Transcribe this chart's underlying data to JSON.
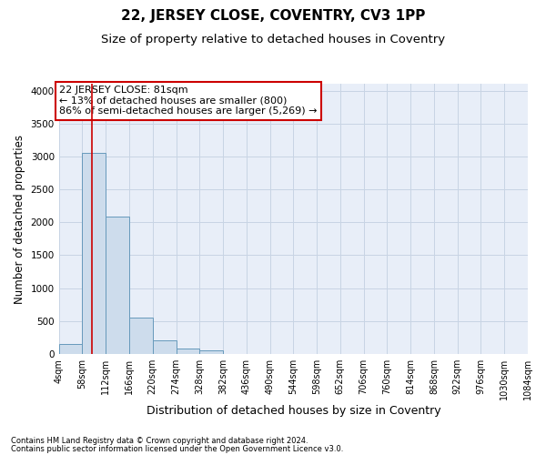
{
  "title": "22, JERSEY CLOSE, COVENTRY, CV3 1PP",
  "subtitle": "Size of property relative to detached houses in Coventry",
  "xlabel": "Distribution of detached houses by size in Coventry",
  "ylabel": "Number of detached properties",
  "footer_line1": "Contains HM Land Registry data © Crown copyright and database right 2024.",
  "footer_line2": "Contains public sector information licensed under the Open Government Licence v3.0.",
  "bin_labels": [
    "4sqm",
    "58sqm",
    "112sqm",
    "166sqm",
    "220sqm",
    "274sqm",
    "328sqm",
    "382sqm",
    "436sqm",
    "490sqm",
    "544sqm",
    "598sqm",
    "652sqm",
    "706sqm",
    "760sqm",
    "814sqm",
    "868sqm",
    "922sqm",
    "976sqm",
    "1030sqm",
    "1084sqm"
  ],
  "bin_edges": [
    4,
    58,
    112,
    166,
    220,
    274,
    328,
    382,
    436,
    490,
    544,
    598,
    652,
    706,
    760,
    814,
    868,
    922,
    976,
    1030,
    1084
  ],
  "bar_heights": [
    150,
    3060,
    2080,
    555,
    210,
    85,
    55,
    0,
    0,
    0,
    0,
    0,
    0,
    0,
    0,
    0,
    0,
    0,
    0,
    0
  ],
  "bar_color": "#cddcec",
  "bar_edge_color": "#6699bb",
  "grid_color": "#c8d4e4",
  "background_color": "#e8eef8",
  "annotation_text": "22 JERSEY CLOSE: 81sqm\n← 13% of detached houses are smaller (800)\n86% of semi-detached houses are larger (5,269) →",
  "vline_color": "#cc0000",
  "vline_x": 81,
  "ylim": [
    0,
    4100
  ],
  "yticks": [
    0,
    500,
    1000,
    1500,
    2000,
    2500,
    3000,
    3500,
    4000
  ],
  "title_fontsize": 11,
  "subtitle_fontsize": 9.5,
  "annotation_fontsize": 8,
  "annotation_box_facecolor": "white",
  "annotation_box_edgecolor": "#cc0000",
  "ylabel_fontsize": 8.5,
  "xlabel_fontsize": 9,
  "footer_fontsize": 6,
  "tick_fontsize": 7
}
